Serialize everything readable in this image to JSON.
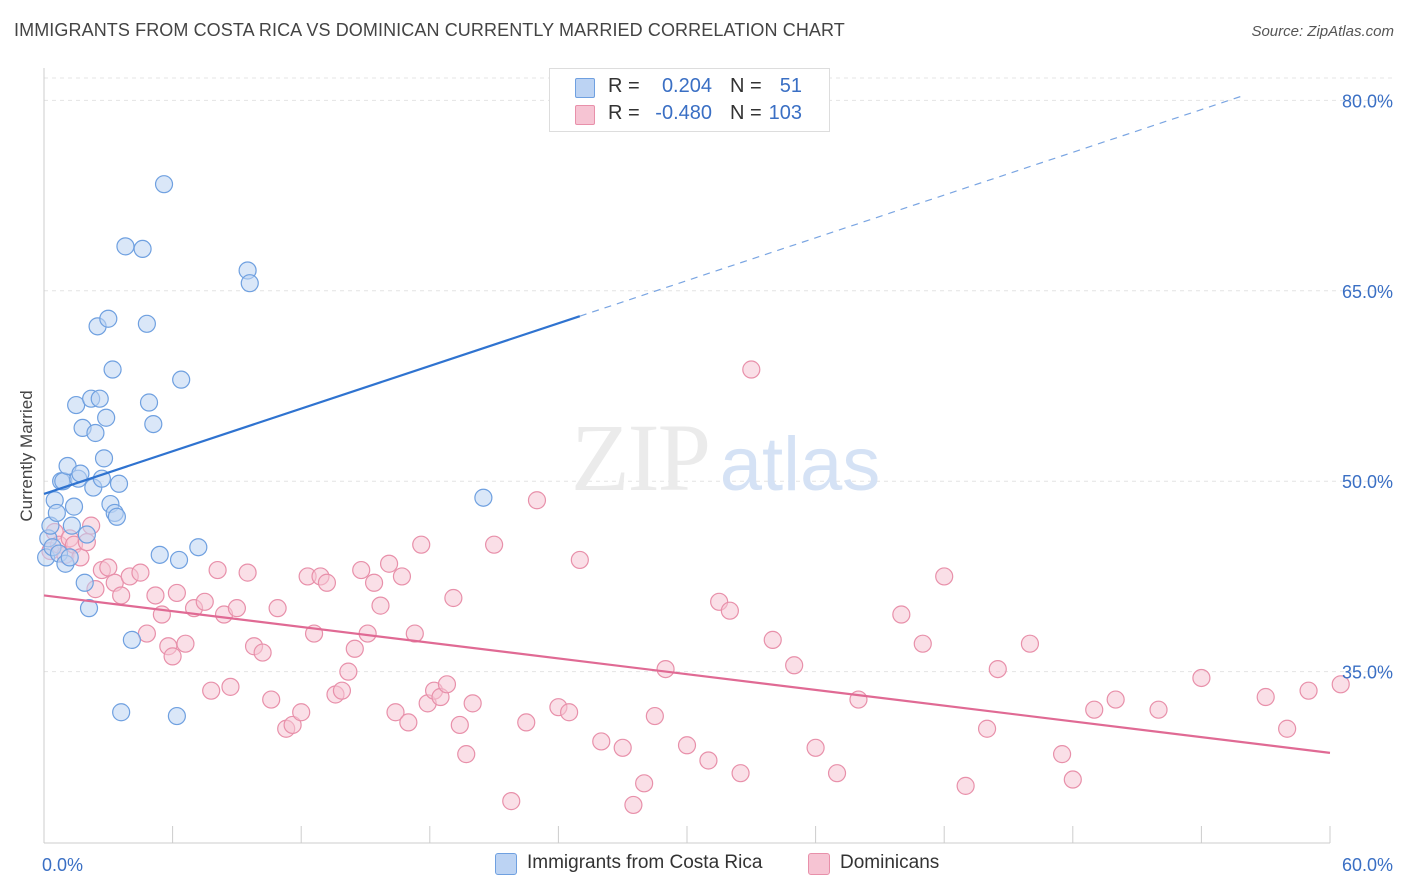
{
  "title": "IMMIGRANTS FROM COSTA RICA VS DOMINICAN CURRENTLY MARRIED CORRELATION CHART",
  "source": "Source: ZipAtlas.com",
  "watermark": {
    "zip": "ZIP",
    "atlas": "atlas"
  },
  "legend_top": {
    "r_label": "R =",
    "n_label": "N =",
    "rows": [
      {
        "r": "0.204",
        "n": "51"
      },
      {
        "r": "-0.480",
        "n": "103"
      }
    ]
  },
  "chart_data": {
    "type": "scatter",
    "xlabel": "",
    "ylabel": "Currently Married",
    "xlim": [
      0,
      60
    ],
    "ylim": [
      21.5,
      82
    ],
    "x_tick_labels": [
      {
        "value": 0,
        "label": "0.0%"
      },
      {
        "value": 60,
        "label": "60.0%"
      }
    ],
    "y_tick_labels": [
      {
        "value": 35,
        "label": "35.0%"
      },
      {
        "value": 50,
        "label": "50.0%"
      },
      {
        "value": 65,
        "label": "65.0%"
      },
      {
        "value": 80,
        "label": "80.0%"
      }
    ],
    "grid": true,
    "legend_position": "bottom",
    "series": [
      {
        "name": "Immigrants from Costa Rica",
        "color": "#6fa0e0",
        "fill": "#bcd3f3",
        "trend": {
          "x0": 0,
          "y0": 49.0,
          "x1": 25,
          "y1": 63.0,
          "dash_to_x": 56,
          "dash_to_y": 80.4
        },
        "points": [
          [
            0.1,
            44.0
          ],
          [
            0.2,
            45.5
          ],
          [
            0.3,
            46.5
          ],
          [
            0.4,
            44.8
          ],
          [
            0.5,
            48.5
          ],
          [
            0.6,
            47.5
          ],
          [
            0.7,
            44.3
          ],
          [
            0.8,
            50.0
          ],
          [
            0.9,
            50.0
          ],
          [
            1.0,
            43.5
          ],
          [
            1.1,
            51.2
          ],
          [
            1.2,
            44.0
          ],
          [
            1.3,
            46.5
          ],
          [
            1.4,
            48.0
          ],
          [
            1.5,
            56.0
          ],
          [
            1.6,
            50.2
          ],
          [
            1.7,
            50.6
          ],
          [
            1.8,
            54.2
          ],
          [
            1.9,
            42.0
          ],
          [
            2.0,
            45.8
          ],
          [
            2.1,
            40.0
          ],
          [
            2.2,
            56.5
          ],
          [
            2.3,
            49.5
          ],
          [
            2.4,
            53.8
          ],
          [
            2.5,
            62.2
          ],
          [
            2.6,
            56.5
          ],
          [
            2.7,
            50.2
          ],
          [
            2.8,
            51.8
          ],
          [
            2.9,
            55.0
          ],
          [
            3.0,
            62.8
          ],
          [
            3.1,
            48.2
          ],
          [
            3.2,
            58.8
          ],
          [
            3.3,
            47.5
          ],
          [
            3.4,
            47.2
          ],
          [
            3.5,
            49.8
          ],
          [
            3.6,
            31.8
          ],
          [
            3.8,
            68.5
          ],
          [
            4.1,
            37.5
          ],
          [
            4.6,
            68.3
          ],
          [
            4.8,
            62.4
          ],
          [
            4.9,
            56.2
          ],
          [
            5.1,
            54.5
          ],
          [
            5.4,
            44.2
          ],
          [
            5.6,
            73.4
          ],
          [
            6.2,
            31.5
          ],
          [
            6.3,
            43.8
          ],
          [
            6.4,
            58.0
          ],
          [
            7.2,
            44.8
          ],
          [
            9.5,
            66.6
          ],
          [
            9.6,
            65.6
          ],
          [
            20.5,
            48.7
          ]
        ]
      },
      {
        "name": "Dominicans",
        "color": "#e890aa",
        "fill": "#f6c4d3",
        "trend": {
          "x0": 0,
          "y0": 41.0,
          "x1": 60,
          "y1": 28.6
        },
        "points": [
          [
            0.3,
            44.5
          ],
          [
            0.5,
            46.0
          ],
          [
            0.7,
            45.0
          ],
          [
            1.0,
            44.2
          ],
          [
            1.2,
            45.5
          ],
          [
            1.4,
            45.0
          ],
          [
            1.7,
            44.0
          ],
          [
            2.0,
            45.2
          ],
          [
            2.2,
            46.5
          ],
          [
            2.4,
            41.5
          ],
          [
            2.7,
            43.0
          ],
          [
            3.0,
            43.2
          ],
          [
            3.3,
            42.0
          ],
          [
            3.6,
            41.0
          ],
          [
            4.0,
            42.5
          ],
          [
            4.5,
            42.8
          ],
          [
            4.8,
            38.0
          ],
          [
            5.2,
            41.0
          ],
          [
            5.5,
            39.5
          ],
          [
            5.8,
            37.0
          ],
          [
            6.0,
            36.2
          ],
          [
            6.2,
            41.2
          ],
          [
            6.6,
            37.2
          ],
          [
            7.0,
            40.0
          ],
          [
            7.5,
            40.5
          ],
          [
            7.8,
            33.5
          ],
          [
            8.1,
            43.0
          ],
          [
            8.4,
            39.5
          ],
          [
            8.7,
            33.8
          ],
          [
            9.0,
            40.0
          ],
          [
            9.5,
            42.8
          ],
          [
            9.8,
            37.0
          ],
          [
            10.2,
            36.5
          ],
          [
            10.6,
            32.8
          ],
          [
            10.9,
            40.0
          ],
          [
            11.3,
            30.5
          ],
          [
            11.6,
            30.8
          ],
          [
            12.0,
            31.8
          ],
          [
            12.3,
            42.5
          ],
          [
            12.6,
            38.0
          ],
          [
            12.9,
            42.5
          ],
          [
            13.2,
            42.0
          ],
          [
            13.6,
            33.2
          ],
          [
            13.9,
            33.5
          ],
          [
            14.2,
            35.0
          ],
          [
            14.5,
            36.8
          ],
          [
            14.8,
            43.0
          ],
          [
            15.1,
            38.0
          ],
          [
            15.4,
            42.0
          ],
          [
            15.7,
            40.2
          ],
          [
            16.1,
            43.5
          ],
          [
            16.4,
            31.8
          ],
          [
            16.7,
            42.5
          ],
          [
            17.0,
            31.0
          ],
          [
            17.3,
            38.0
          ],
          [
            17.6,
            45.0
          ],
          [
            17.9,
            32.5
          ],
          [
            18.2,
            33.5
          ],
          [
            18.5,
            33.0
          ],
          [
            18.8,
            34.0
          ],
          [
            19.1,
            40.8
          ],
          [
            19.4,
            30.8
          ],
          [
            19.7,
            28.5
          ],
          [
            20.0,
            32.5
          ],
          [
            21.0,
            45.0
          ],
          [
            21.8,
            24.8
          ],
          [
            22.5,
            31.0
          ],
          [
            23.0,
            48.5
          ],
          [
            24.0,
            32.2
          ],
          [
            24.5,
            31.8
          ],
          [
            25.0,
            43.8
          ],
          [
            26.0,
            29.5
          ],
          [
            27.0,
            29.0
          ],
          [
            27.5,
            24.5
          ],
          [
            28.0,
            26.2
          ],
          [
            28.5,
            31.5
          ],
          [
            29.0,
            35.2
          ],
          [
            30.0,
            29.2
          ],
          [
            31.0,
            28.0
          ],
          [
            31.5,
            40.5
          ],
          [
            32.0,
            39.8
          ],
          [
            32.5,
            27.0
          ],
          [
            33.0,
            58.8
          ],
          [
            34.0,
            37.5
          ],
          [
            35.0,
            35.5
          ],
          [
            36.0,
            29.0
          ],
          [
            37.0,
            27.0
          ],
          [
            38.0,
            32.8
          ],
          [
            40.0,
            39.5
          ],
          [
            41.0,
            37.2
          ],
          [
            42.0,
            42.5
          ],
          [
            43.0,
            26.0
          ],
          [
            44.0,
            30.5
          ],
          [
            44.5,
            35.2
          ],
          [
            46.0,
            37.2
          ],
          [
            47.5,
            28.5
          ],
          [
            48.0,
            26.5
          ],
          [
            49.0,
            32.0
          ],
          [
            50.0,
            32.8
          ],
          [
            52.0,
            32.0
          ],
          [
            54.0,
            34.5
          ],
          [
            57.0,
            33.0
          ],
          [
            58.0,
            30.5
          ],
          [
            59.0,
            33.5
          ],
          [
            60.5,
            34.0
          ]
        ]
      }
    ]
  }
}
